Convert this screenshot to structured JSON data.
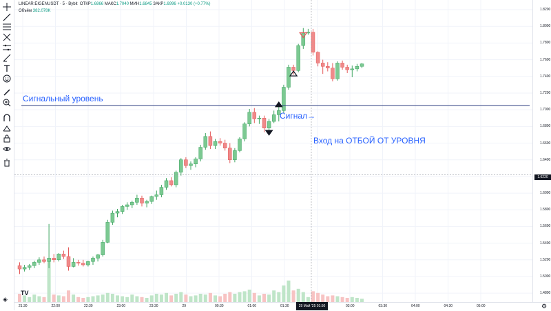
{
  "legend": {
    "symbol": "LINEAR:EIGENUSDT · 5 · Bybit",
    "o_label": "ОТКР",
    "o_value": "1.6866",
    "h_label": "МАКС",
    "h_value": "1.7040",
    "l_label": "МИН",
    "l_value": "1.6845",
    "c_label": "ЗАКР",
    "c_value": "1.6996",
    "change": "+0.0130 (+0.77%)",
    "volume_label": "Объём",
    "volume_value": "382.078K"
  },
  "annotations": {
    "signal_level": "Сигнальный уровень",
    "signal": "Сигнал→",
    "entry": "Вход на ОТБОЙ ОТ УРОВНЯ"
  },
  "colors": {
    "up": "#3da560",
    "up_body": "#7cc992",
    "down": "#e45a5a",
    "down_body": "#ef8a8a",
    "level_line": "#2c3e80",
    "annotation": "#2962ff",
    "volume_up": "#bfe5c8",
    "volume_down": "#f7c3c3"
  },
  "current_price_badge": "1.6220",
  "time_badge": "29 Май '25   01:50",
  "chart_data": {
    "type": "candlestick",
    "price_ticks": [
      "1.8200",
      "1.8000",
      "1.7800",
      "1.7600",
      "1.7400",
      "1.7200",
      "1.7000",
      "1.6800",
      "1.6600",
      "1.6400",
      "1.6200",
      "1.6000",
      "1.5800",
      "1.5600",
      "1.5400",
      "1.5200",
      "1.5000",
      "1.4800"
    ],
    "time_ticks": [
      "21:30",
      "22:00",
      "22:30",
      "23:00",
      "23:30",
      "29",
      "00:30",
      "01:00",
      "01:30",
      "02:30",
      "03:00",
      "03:30",
      "04:00",
      "04:30",
      "05:00"
    ],
    "signal_level_price": 1.705,
    "ylim": [
      1.476,
      1.825
    ],
    "candles": [
      [
        1.513,
        1.517,
        1.503,
        1.509,
        10
      ],
      [
        1.509,
        1.514,
        1.506,
        1.511,
        8
      ],
      [
        1.511,
        1.515,
        1.508,
        1.513,
        6
      ],
      [
        1.513,
        1.519,
        1.51,
        1.517,
        9
      ],
      [
        1.517,
        1.523,
        1.514,
        1.52,
        7
      ],
      [
        1.52,
        1.524,
        1.516,
        1.518,
        6
      ],
      [
        1.518,
        1.563,
        1.51,
        1.522,
        50
      ],
      [
        1.522,
        1.527,
        1.517,
        1.52,
        9
      ],
      [
        1.52,
        1.528,
        1.518,
        1.527,
        8
      ],
      [
        1.527,
        1.531,
        1.521,
        1.524,
        7
      ],
      [
        1.524,
        1.535,
        1.507,
        1.512,
        14
      ],
      [
        1.512,
        1.522,
        1.511,
        1.517,
        9
      ],
      [
        1.517,
        1.52,
        1.513,
        1.516,
        6
      ],
      [
        1.516,
        1.52,
        1.512,
        1.514,
        5
      ],
      [
        1.514,
        1.519,
        1.512,
        1.518,
        6
      ],
      [
        1.518,
        1.524,
        1.514,
        1.522,
        7
      ],
      [
        1.522,
        1.527,
        1.518,
        1.526,
        8
      ],
      [
        1.526,
        1.544,
        1.524,
        1.541,
        9
      ],
      [
        1.541,
        1.568,
        1.54,
        1.565,
        11
      ],
      [
        1.565,
        1.579,
        1.562,
        1.576,
        10
      ],
      [
        1.576,
        1.581,
        1.571,
        1.578,
        8
      ],
      [
        1.578,
        1.586,
        1.575,
        1.584,
        7
      ],
      [
        1.584,
        1.589,
        1.58,
        1.586,
        6
      ],
      [
        1.586,
        1.591,
        1.582,
        1.589,
        9
      ],
      [
        1.589,
        1.598,
        1.586,
        1.594,
        7
      ],
      [
        1.594,
        1.597,
        1.584,
        1.588,
        6
      ],
      [
        1.588,
        1.592,
        1.583,
        1.59,
        5
      ],
      [
        1.59,
        1.597,
        1.587,
        1.596,
        8
      ],
      [
        1.596,
        1.603,
        1.592,
        1.598,
        10
      ],
      [
        1.598,
        1.61,
        1.595,
        1.607,
        9
      ],
      [
        1.607,
        1.618,
        1.604,
        1.615,
        11
      ],
      [
        1.615,
        1.619,
        1.608,
        1.61,
        8
      ],
      [
        1.61,
        1.627,
        1.607,
        1.625,
        10
      ],
      [
        1.625,
        1.642,
        1.621,
        1.64,
        12
      ],
      [
        1.64,
        1.643,
        1.63,
        1.633,
        9
      ],
      [
        1.633,
        1.638,
        1.628,
        1.635,
        7
      ],
      [
        1.635,
        1.643,
        1.631,
        1.641,
        8
      ],
      [
        1.641,
        1.658,
        1.638,
        1.655,
        10
      ],
      [
        1.655,
        1.672,
        1.652,
        1.668,
        9
      ],
      [
        1.668,
        1.674,
        1.653,
        1.657,
        11
      ],
      [
        1.657,
        1.665,
        1.653,
        1.662,
        8
      ],
      [
        1.662,
        1.666,
        1.657,
        1.66,
        7
      ],
      [
        1.66,
        1.664,
        1.651,
        1.654,
        10
      ],
      [
        1.654,
        1.66,
        1.636,
        1.64,
        12
      ],
      [
        1.64,
        1.654,
        1.637,
        1.651,
        10
      ],
      [
        1.651,
        1.667,
        1.649,
        1.665,
        12
      ],
      [
        1.665,
        1.685,
        1.662,
        1.683,
        13
      ],
      [
        1.683,
        1.701,
        1.68,
        1.697,
        15
      ],
      [
        1.697,
        1.702,
        1.684,
        1.689,
        11
      ],
      [
        1.689,
        1.693,
        1.683,
        1.69,
        8
      ],
      [
        1.69,
        1.693,
        1.673,
        1.678,
        10
      ],
      [
        1.678,
        1.689,
        1.675,
        1.686,
        9
      ],
      [
        1.686,
        1.699,
        1.684,
        1.694,
        14
      ],
      [
        1.694,
        1.704,
        1.686,
        1.699,
        12
      ],
      [
        1.699,
        1.73,
        1.696,
        1.727,
        20
      ],
      [
        1.727,
        1.754,
        1.724,
        1.751,
        26
      ],
      [
        1.751,
        1.754,
        1.742,
        1.747,
        14
      ],
      [
        1.747,
        1.779,
        1.745,
        1.777,
        16
      ],
      [
        1.777,
        1.798,
        1.773,
        1.792,
        12
      ],
      [
        1.792,
        1.797,
        1.79,
        1.793,
        6
      ],
      [
        1.793,
        1.797,
        1.765,
        1.769,
        13
      ],
      [
        1.769,
        1.77,
        1.752,
        1.756,
        11
      ],
      [
        1.756,
        1.76,
        1.743,
        1.752,
        9
      ],
      [
        1.752,
        1.757,
        1.746,
        1.75,
        7
      ],
      [
        1.75,
        1.756,
        1.734,
        1.737,
        8
      ],
      [
        1.737,
        1.758,
        1.735,
        1.756,
        7
      ],
      [
        1.756,
        1.759,
        1.748,
        1.751,
        6
      ],
      [
        1.751,
        1.754,
        1.744,
        1.748,
        5
      ],
      [
        1.748,
        1.753,
        1.739,
        1.749,
        6
      ],
      [
        1.749,
        1.755,
        1.746,
        1.752,
        5
      ],
      [
        1.752,
        1.756,
        1.75,
        1.755,
        4
      ]
    ],
    "markers": [
      {
        "type": "down-triangle",
        "candle": 51,
        "price": 1.672,
        "color": "#131722"
      },
      {
        "type": "up-triangle",
        "candle": 53,
        "price": 1.706,
        "color": "#131722"
      },
      {
        "type": "up-triangle-outline",
        "candle": 56,
        "price": 1.743,
        "color": "#131722"
      },
      {
        "type": "down-triangle-outline",
        "candle": 58,
        "price": 1.789,
        "color": "#e45a5a"
      }
    ]
  },
  "toolbar": {
    "tools": [
      "crosshair-icon",
      "trendline-icon",
      "fib-icon",
      "pitchfork-icon",
      "pattern-icon",
      "measure-icon",
      "brush-icon",
      "text-icon",
      "emoji-icon",
      "ruler-icon",
      "zoom-in-icon",
      "magnet-icon",
      "lock-drawing-icon",
      "lock-icon",
      "eye-icon",
      "trash-icon"
    ]
  }
}
